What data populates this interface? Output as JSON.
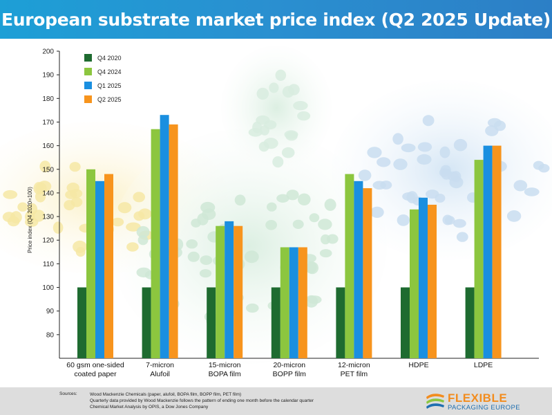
{
  "header": {
    "title": "European substrate market price index (Q2 2025 Update)"
  },
  "chart_data": {
    "type": "bar",
    "ylabel": "Price index (Q4 2020=100)",
    "ylim": [
      70,
      200
    ],
    "yticks": [
      80,
      90,
      100,
      110,
      120,
      130,
      140,
      150,
      160,
      170,
      180,
      190,
      200
    ],
    "categories": [
      [
        "60 gsm one-sided",
        "coated paper"
      ],
      [
        "7-micron",
        "Alufoil"
      ],
      [
        "15-micron",
        "BOPA film"
      ],
      [
        "20-micron",
        "BOPP film"
      ],
      [
        "12-micron",
        "PET film"
      ],
      [
        "HDPE"
      ],
      [
        "LDPE"
      ]
    ],
    "series": [
      {
        "name": "Q4 2020",
        "color": "#1e6b30",
        "values": [
          100,
          100,
          100,
          100,
          100,
          100,
          100
        ]
      },
      {
        "name": "Q4 2024",
        "color": "#8cc63f",
        "values": [
          150,
          167,
          126,
          117,
          148,
          133,
          154
        ]
      },
      {
        "name": "Q1 2025",
        "color": "#1a8fe0",
        "values": [
          145,
          173,
          128,
          117,
          145,
          138,
          160
        ]
      },
      {
        "name": "Q2 2025",
        "color": "#f7941d",
        "values": [
          148,
          169,
          126,
          117,
          142,
          135,
          160
        ]
      }
    ],
    "legend_position": "top-left",
    "grid": false
  },
  "footer": {
    "sources_label": "Sources:",
    "sources": [
      "Wood Mackenzie Chemicals (paper, alufoil, BOPA film, BOPP film, PET film)",
      "Quarterly data provided by Wood Mackenzie follows the pattern of ending one month before the calendar quarter",
      "Chemical Market Analysis by OPIS, a Dow Jones Company"
    ],
    "logo_line1": "FLEXIBLE",
    "logo_line2": "PACKAGING EUROPE"
  }
}
